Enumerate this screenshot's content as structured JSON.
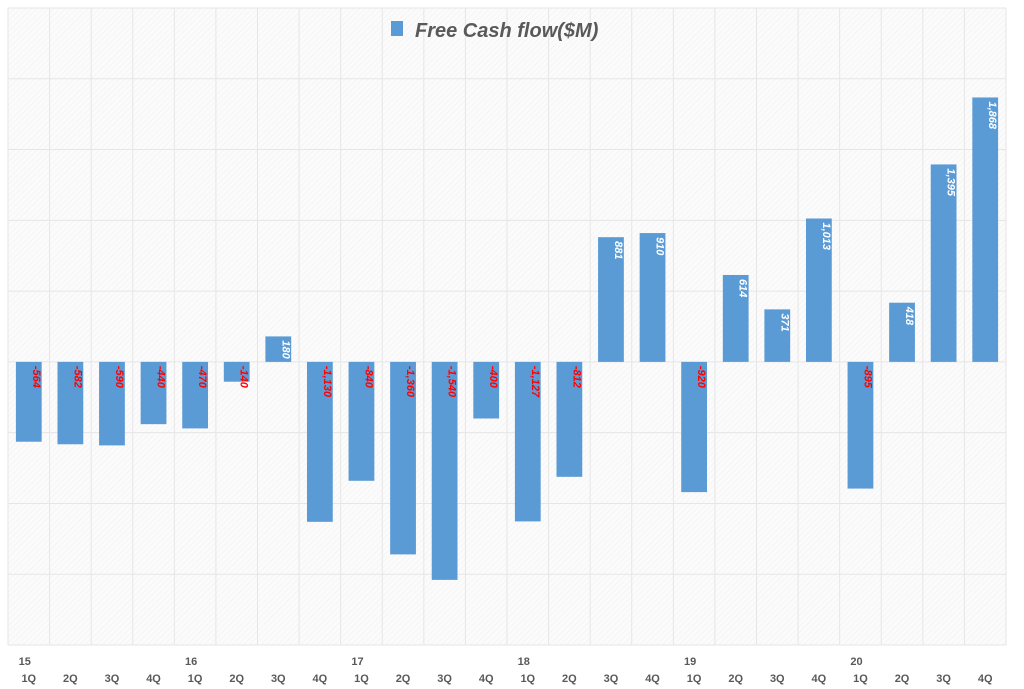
{
  "chart_data": {
    "type": "bar",
    "title": "Free Cash flow($M)",
    "legend": {
      "position": "top",
      "entries": [
        "Free Cash flow($M)"
      ]
    },
    "series": [
      {
        "name": "Free Cash flow($M)",
        "values": [
          -564,
          -582,
          -590,
          -440,
          -470,
          -140,
          180,
          -1130,
          -840,
          -1360,
          -1540,
          -400,
          -1127,
          -812,
          881,
          910,
          -920,
          614,
          371,
          1013,
          -895,
          418,
          1395,
          1868
        ],
        "labels": [
          "-564",
          "-582",
          "-590",
          "-440",
          "-470",
          "-140",
          "180",
          "-1,130",
          "-840",
          "-1,360",
          "-1,540",
          "-400",
          "-1,127",
          "-812",
          "881",
          "910",
          "-920",
          "614",
          "371",
          "1,013",
          "-895",
          "418",
          "1,395",
          "1,868"
        ]
      }
    ],
    "categories": [
      "1Q",
      "2Q",
      "3Q",
      "4Q",
      "1Q",
      "2Q",
      "3Q",
      "4Q",
      "1Q",
      "2Q",
      "3Q",
      "4Q",
      "1Q",
      "2Q",
      "3Q",
      "4Q",
      "1Q",
      "2Q",
      "3Q",
      "4Q",
      "1Q",
      "2Q",
      "3Q",
      "4Q"
    ],
    "year_labels": [
      "15",
      "16",
      "17",
      "18",
      "19",
      "20"
    ],
    "ylim": [
      -2000,
      2500
    ],
    "y_gridline_step": 500,
    "grid": true,
    "y_tick_labels_shown": false,
    "colors": {
      "bar": "#5B9BD5",
      "positive_label": "#FFFFFF",
      "negative_label": "#FF0000",
      "grid": "#E6E6E6",
      "text": "#595959"
    }
  }
}
